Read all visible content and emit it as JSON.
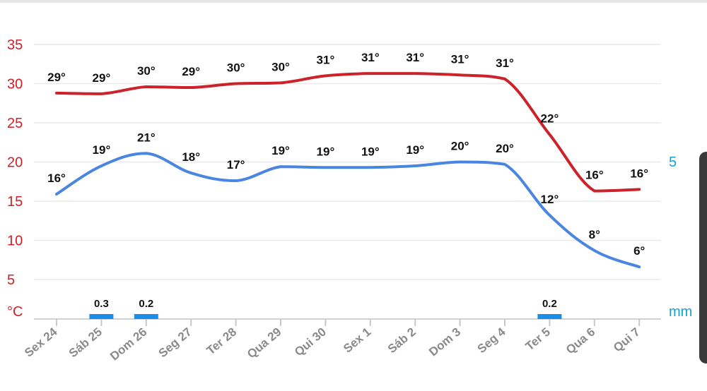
{
  "chart_data": {
    "type": "line",
    "categories": [
      "Sex 24",
      "Sáb 25",
      "Dom 26",
      "Seg 27",
      "Ter 28",
      "Qua 29",
      "Qui 30",
      "Sex 1",
      "Sáb 2",
      "Dom 3",
      "Seg 4",
      "Ter 5",
      "Qua 6",
      "Qui 7"
    ],
    "series": [
      {
        "color": "#cc2229",
        "values": [
          29,
          29,
          30,
          29,
          30,
          30,
          31,
          31,
          31,
          31,
          31,
          22,
          16,
          16
        ],
        "labels": [
          "29°",
          "29°",
          "30°",
          "29°",
          "30°",
          "30°",
          "31°",
          "31°",
          "31°",
          "31°",
          "31°",
          "22°",
          "16°",
          "16°"
        ]
      },
      {
        "color": "#4a86e0",
        "values": [
          16,
          19,
          21,
          18,
          17,
          19,
          19,
          19,
          19,
          20,
          20,
          12,
          8,
          6
        ],
        "labels": [
          "16°",
          "19°",
          "21°",
          "18°",
          "17°",
          "19°",
          "19°",
          "19°",
          "19°",
          "20°",
          "20°",
          "12°",
          "8°",
          "6°"
        ]
      }
    ],
    "precipitation": {
      "color": "#1a8fe8",
      "values": [
        0,
        0.3,
        0.2,
        0,
        0,
        0,
        0,
        0,
        0,
        0,
        0,
        0.2,
        0,
        0
      ],
      "labels": [
        "",
        "0.3",
        "0.2",
        "",
        "",
        "",
        "",
        "",
        "",
        "",
        "",
        "0.2",
        "",
        ""
      ]
    },
    "y_left": {
      "unit": "°C",
      "ticks": [
        "35",
        "30",
        "25",
        "20",
        "15",
        "10",
        "5"
      ],
      "range": [
        0,
        35
      ],
      "color": "#cc2229"
    },
    "y_right": {
      "unit": "mm",
      "ticks": [
        "5"
      ],
      "color": "#1a9fcf"
    },
    "grid": true
  }
}
